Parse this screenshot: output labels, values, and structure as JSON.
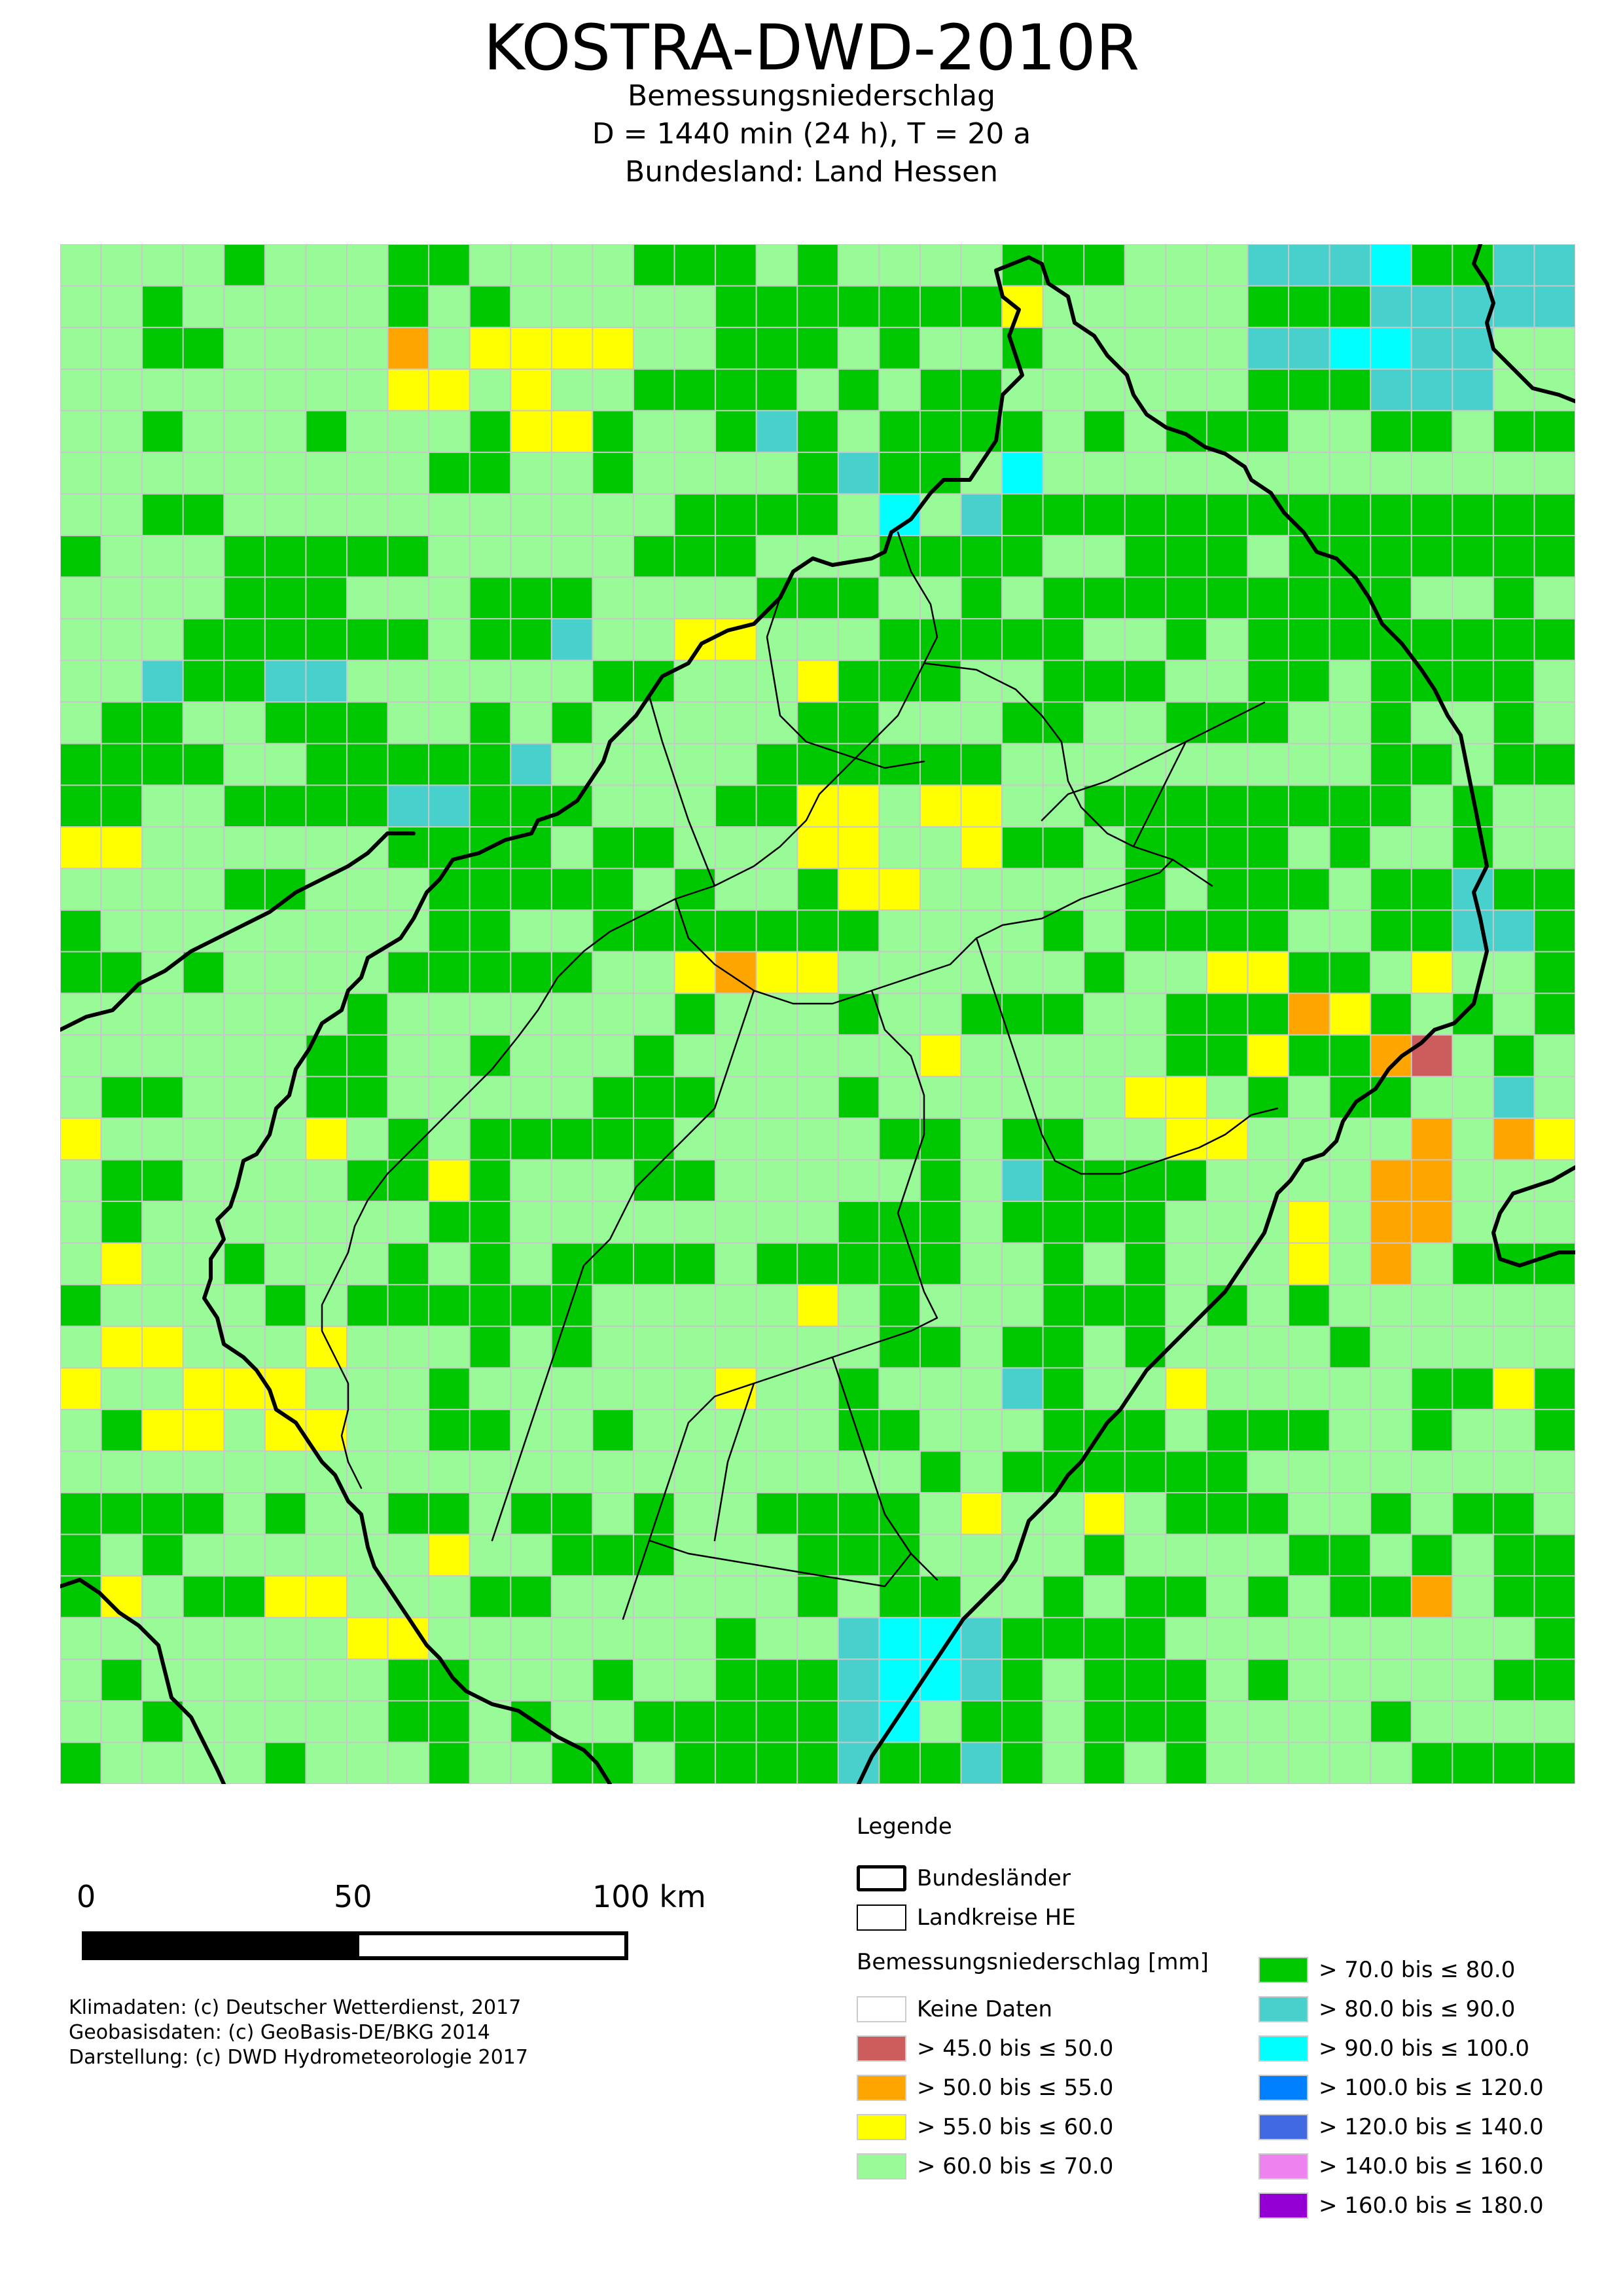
{
  "header": {
    "title": "KOSTRA-DWD-2010R",
    "line1": "Bemessungsniederschlag",
    "line2": "D = 1440 min (24 h),  T = 20 a",
    "line3": "Bundesland: Land Hessen"
  },
  "map": {
    "colors": {
      "nodata": "#ffffff",
      "c1": "#cd5c5c",
      "c2": "#ffa500",
      "c3": "#ffff00",
      "c4": "#98fb98",
      "c5": "#00c800",
      "c6": "#48d1cc",
      "c7": "#00ffff",
      "c8": "#0080ff",
      "c9": "#4169e1",
      "c10": "#ee82ee",
      "c11": "#9400d3"
    },
    "grid_rows": [
      "4444544455444455545444455544466675566",
      "4454444454544444555555534444455566666",
      "4455444424333344555454454444466776644",
      "4444444433434455554545544444455566644",
      "4454445444533544565455554545554455455",
      "4444444445544544445655474444444444444",
      "4455444444444445555474655555555555555",
      "5444555554444455544455554455545555555",
      "4444555444555444455544545555555554454",
      "4445555554556443344455555445455555555",
      "4465566444444554443555445554455455554",
      "4554455544545444445544455445554454454",
      "5555445555564444455555544444444455455",
      "5544555566555444553343344555555554544",
      "3344444455554554443344355455554544544",
      "4444554445555545445334444454555455655",
      "5444444445544555555544445455554455665",
      "5545444455555443233444444544335543445",
      "4444444544444445444544555445552354545",
      "4444445544544454444443444445535521454",
      "4554445544444555444544444433454554464",
      "3444443454555554444455455443344442423",
      "4554444553544455444445465555444422444",
      "4544444445544444444555455554443422444",
      "4344544454545555455555445454443424555",
      "5444454555555444443454445554545444444",
      "4334443444545444444455455454444544444",
      "3443334445444444344544465443444445535",
      "4533433445544544444554445554555445445",
      "4444444444444444444445455555544444444",
      "5555454455455454455554344345554454554",
      "5454444443445554445554444544445545455",
      "5345533444554444445455445455454552455",
      "4444444334444444544677655554444444445",
      "4544444455444544555677654555454444455",
      "4454444455454455555674554555444454444",
      "5444454445445545555655654545444445555"
    ]
  },
  "scalebar": {
    "label_0": "0",
    "label_50": "50",
    "label_100": "100 km"
  },
  "credits": {
    "line1": "Klimadaten: (c) Deutscher Wetterdienst, 2017",
    "line2": "Geobasisdaten: (c) GeoBasis-DE/BKG 2014",
    "line3": "Darstellung: (c) DWD Hydrometeorologie 2017"
  },
  "legend": {
    "title": "Legende",
    "bundeslaender": "Bundesländer",
    "landkreise": "Landkreise HE",
    "value_header": "Bemessungsniederschlag [mm]",
    "left_items": [
      {
        "label": "Keine Daten",
        "color": "#ffffff"
      },
      {
        "label": "> 45.0 bis ≤ 50.0",
        "color": "#cd5c5c"
      },
      {
        "label": "> 50.0 bis ≤ 55.0",
        "color": "#ffa500"
      },
      {
        "label": "> 55.0 bis ≤ 60.0",
        "color": "#ffff00"
      },
      {
        "label": "> 60.0 bis ≤ 70.0",
        "color": "#98fb98"
      }
    ],
    "right_items": [
      {
        "label": "> 70.0 bis ≤ 80.0",
        "color": "#00c800"
      },
      {
        "label": "> 80.0 bis ≤ 90.0",
        "color": "#48d1cc"
      },
      {
        "label": "> 90.0 bis ≤ 100.0",
        "color": "#00ffff"
      },
      {
        "label": "> 100.0 bis ≤ 120.0",
        "color": "#0080ff"
      },
      {
        "label": "> 120.0 bis ≤ 140.0",
        "color": "#4169e1"
      },
      {
        "label": "> 140.0 bis ≤ 160.0",
        "color": "#ee82ee"
      },
      {
        "label": "> 160.0 bis ≤ 180.0",
        "color": "#9400d3"
      }
    ]
  }
}
